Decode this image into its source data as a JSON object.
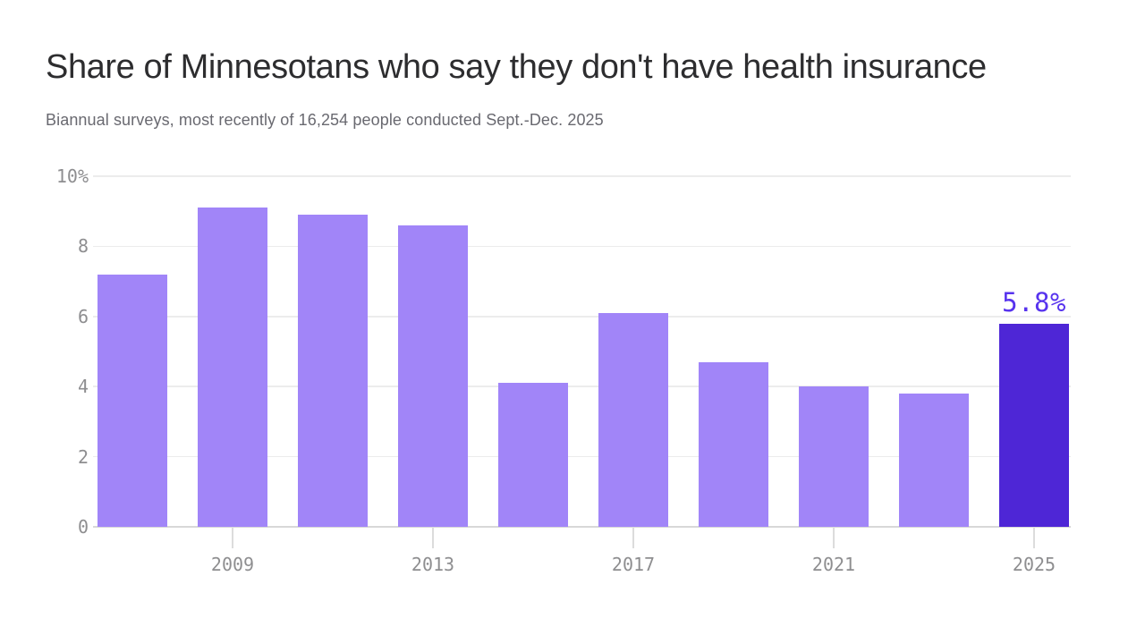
{
  "header": {
    "title": "Share of Minnesotans who say they don't have health insurance",
    "subtitle": "Biannual surveys, most recently of 16,254 people conducted Sept.-Dec. 2025"
  },
  "chart_data": {
    "type": "bar",
    "title": "Share of Minnesotans who say they don't have health insurance",
    "subtitle": "Biannual surveys, most recently of 16,254 people conducted Sept.-Dec. 2025",
    "x": [
      2007,
      2009,
      2011,
      2013,
      2015,
      2017,
      2019,
      2021,
      2023,
      2025
    ],
    "values": [
      7.2,
      9.1,
      8.9,
      8.6,
      4.1,
      6.1,
      4.7,
      4.0,
      3.8,
      5.8
    ],
    "xlabel": "",
    "ylabel": "",
    "ylim": [
      0,
      10
    ],
    "grid": true,
    "legend": "none",
    "y_ticks": [
      {
        "v": 0,
        "label": "0"
      },
      {
        "v": 2,
        "label": "2"
      },
      {
        "v": 4,
        "label": "4"
      },
      {
        "v": 6,
        "label": "6"
      },
      {
        "v": 8,
        "label": "8"
      },
      {
        "v": 10,
        "label": "10%"
      }
    ],
    "x_tick_labels": [
      "2009",
      "2013",
      "2017",
      "2021",
      "2025"
    ],
    "highlight_index": 9,
    "data_label": {
      "index": 9,
      "text": "5.8%"
    },
    "colors": {
      "bar": "#a185f8",
      "bar_highlight": "#4e26d6",
      "data_label": "#5733ee",
      "grid": "#ececec",
      "axis": "#d8d8d8",
      "tick_line": "#dcdcdc",
      "tick_text": "#8e8e90"
    }
  }
}
